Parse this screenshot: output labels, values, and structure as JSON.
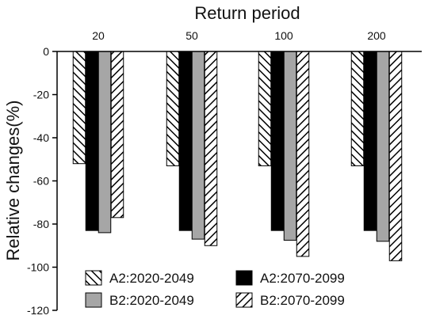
{
  "chart_data": {
    "type": "bar",
    "title": "",
    "xlabel": "Return period",
    "ylabel": "Relative changes(%)",
    "categories": [
      "20",
      "50",
      "100",
      "200"
    ],
    "ylim": [
      -120,
      0
    ],
    "yticks": [
      0,
      -20,
      -40,
      -60,
      -80,
      -100,
      -120
    ],
    "grid": false,
    "legend_position": "bottom",
    "series": [
      {
        "name": "A2:2020-2049",
        "values": [
          -52,
          -53,
          -53,
          -53
        ],
        "fill": "hatch-forward",
        "color": "#ffffff"
      },
      {
        "name": "A2:2070-2099",
        "values": [
          -83,
          -83,
          -83,
          -83
        ],
        "fill": "solid",
        "color": "#000000"
      },
      {
        "name": "B2:2020-2049",
        "values": [
          -84,
          -87,
          -87.5,
          -88
        ],
        "fill": "solid",
        "color": "#a6a6a6"
      },
      {
        "name": "B2:2070-2099",
        "values": [
          -77,
          -90,
          -95,
          -97
        ],
        "fill": "hatch-backward",
        "color": "#ffffff"
      }
    ]
  }
}
